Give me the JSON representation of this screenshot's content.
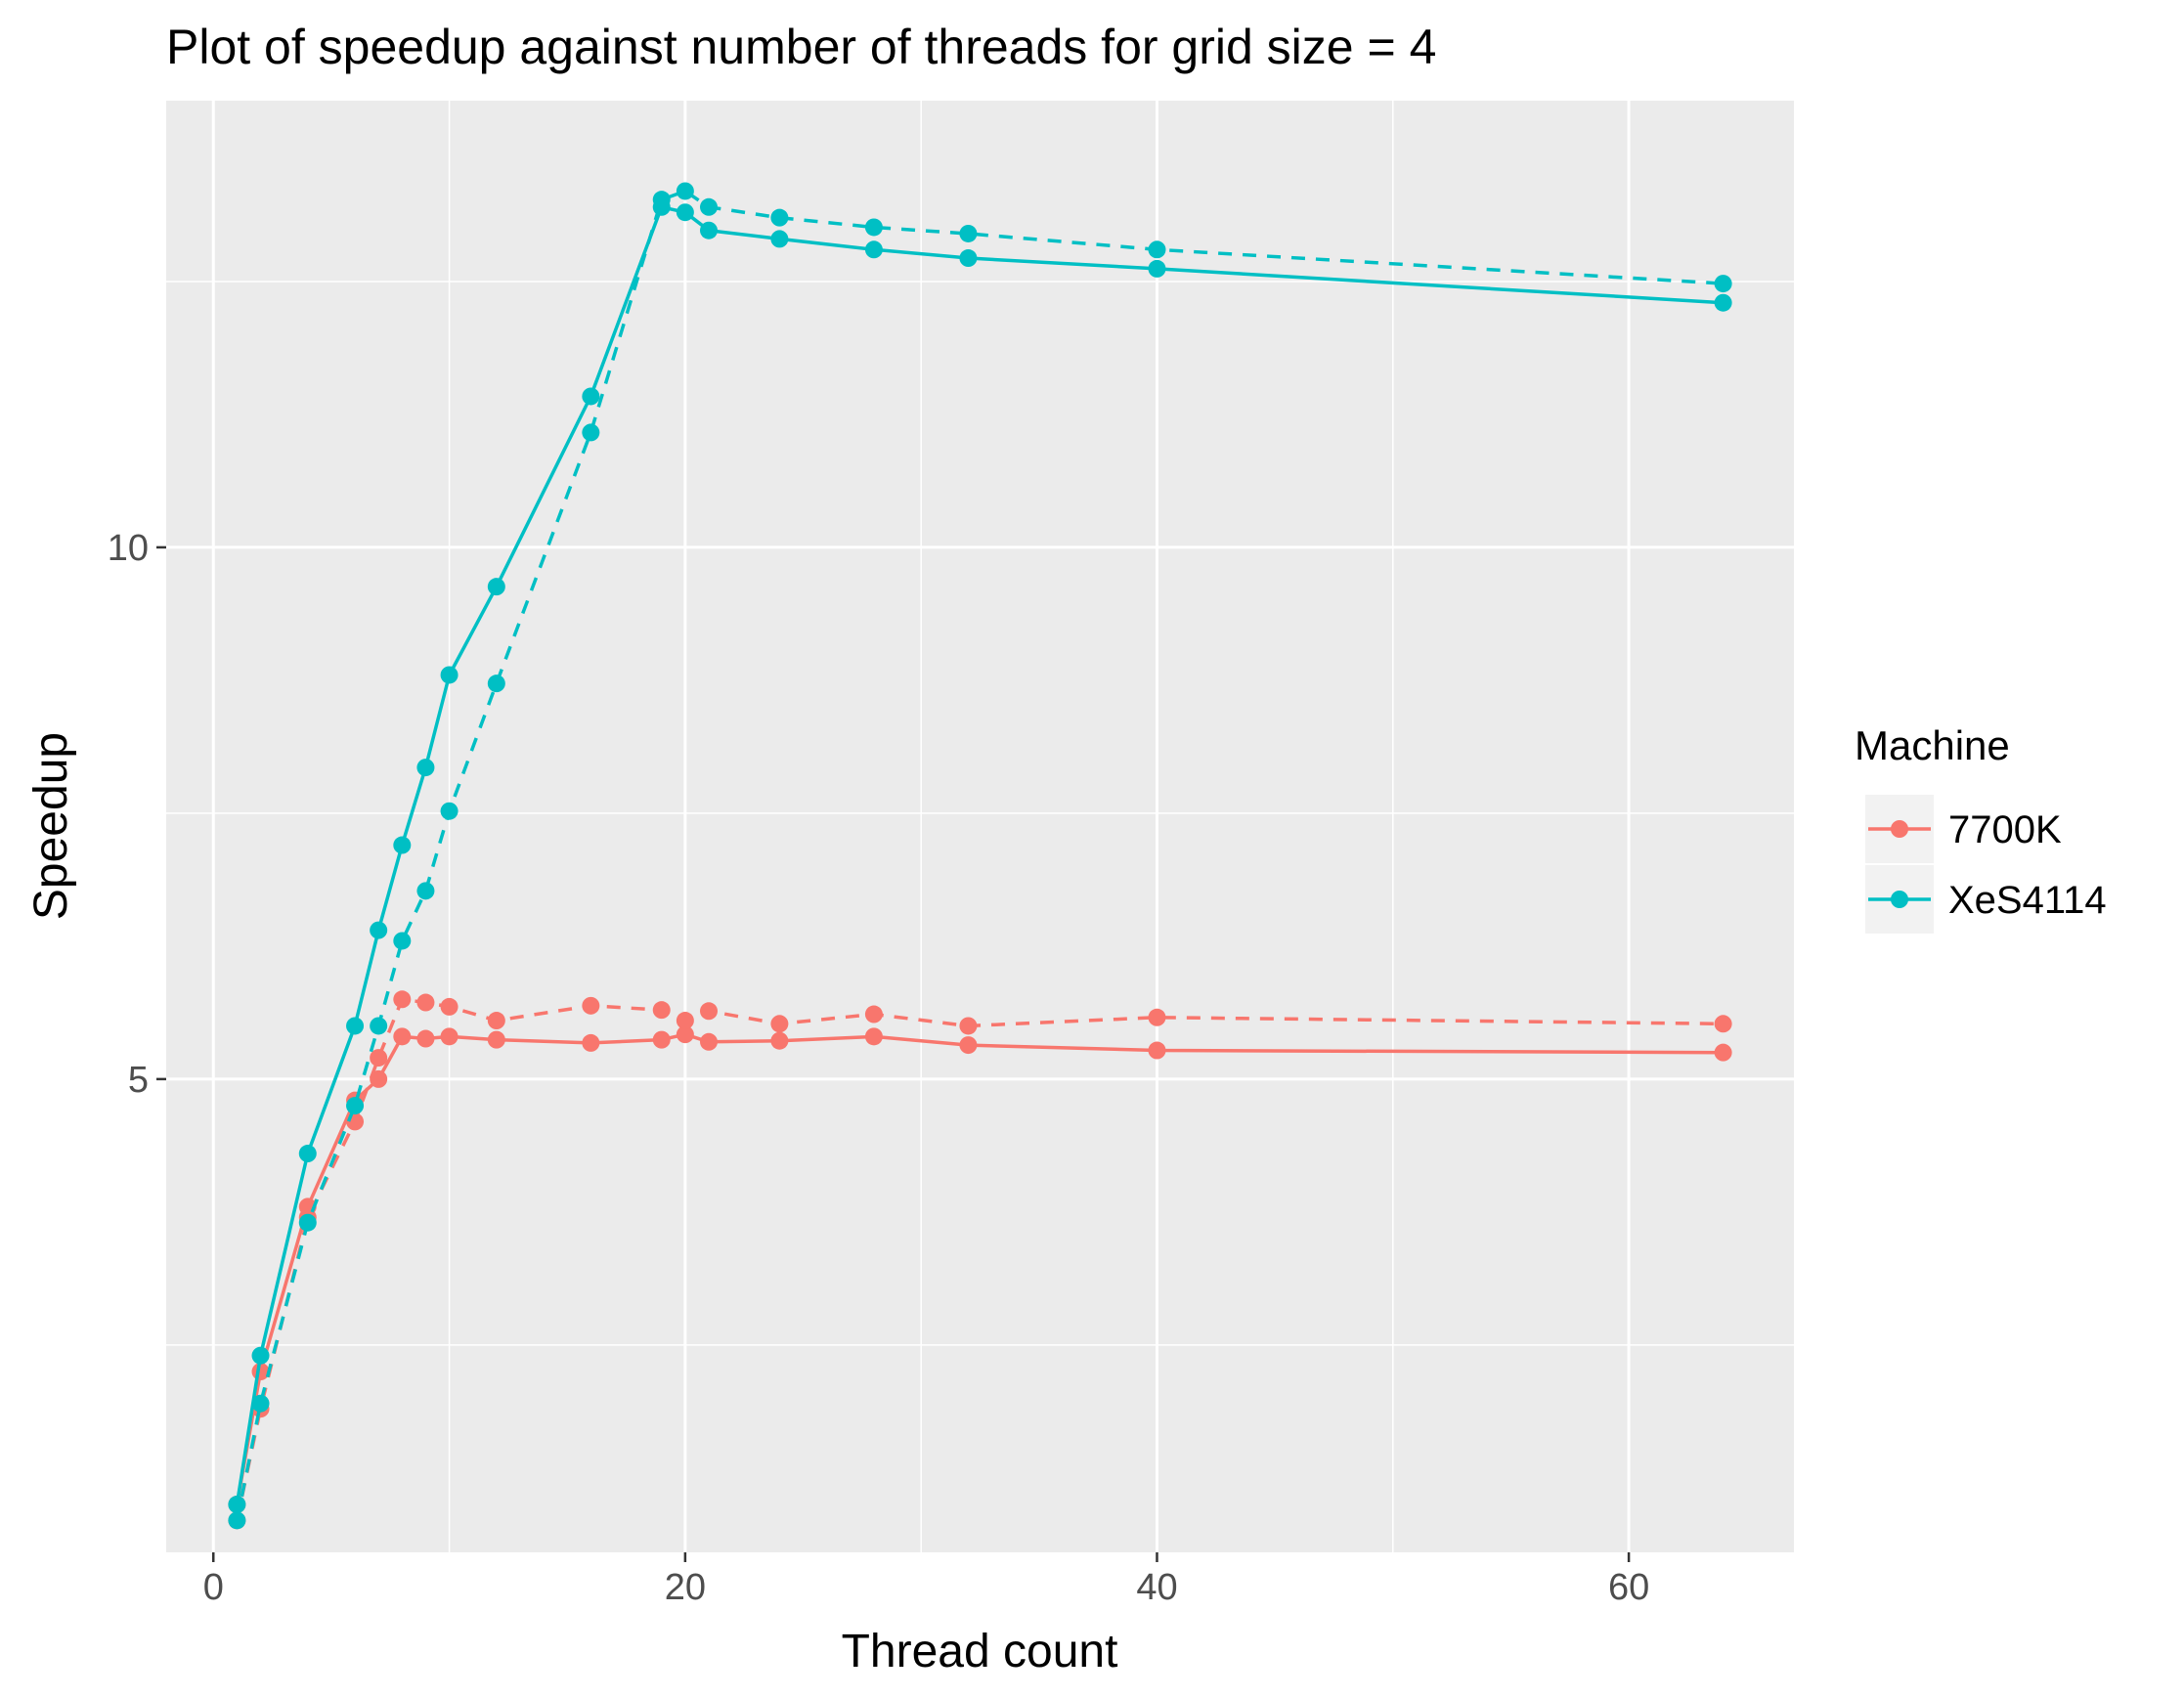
{
  "chart_data": {
    "type": "line",
    "title": "Plot of speedup against number of threads for grid size = 4",
    "xlabel": "Thread count",
    "ylabel": "Speedup",
    "xlim": [
      -2,
      67
    ],
    "ylim": [
      0.55,
      14.2
    ],
    "x_ticks": [
      0,
      20,
      40,
      60
    ],
    "x_tick_labels": [
      "0",
      "20",
      "40",
      "60"
    ],
    "y_ticks": [
      5,
      10
    ],
    "y_tick_labels": [
      "5",
      "10"
    ],
    "x_minor_ticks": [
      10,
      30,
      50
    ],
    "y_minor_ticks": [
      2.5,
      7.5,
      12.5
    ],
    "grid": true,
    "background": "#ebebeb",
    "legend": {
      "title": "Machine",
      "position": "right",
      "entries": [
        {
          "label": "7700K",
          "color": "#f8766d"
        },
        {
          "label": "XeS4114",
          "color": "#00bfc4"
        }
      ]
    },
    "series": [
      {
        "machine": "7700K",
        "color": "#f8766d",
        "linestyle": "solid",
        "x": [
          1,
          2,
          4,
          6,
          7,
          8,
          9,
          10,
          12,
          16,
          19,
          20,
          21,
          24,
          28,
          32,
          40,
          64
        ],
        "y": [
          1.0,
          2.25,
          3.8,
          4.8,
          5.0,
          5.4,
          5.38,
          5.4,
          5.37,
          5.34,
          5.37,
          5.42,
          5.35,
          5.36,
          5.4,
          5.32,
          5.27,
          5.25
        ]
      },
      {
        "machine": "7700K",
        "color": "#f8766d",
        "linestyle": "dashed",
        "x": [
          1,
          2,
          4,
          6,
          7,
          8,
          9,
          10,
          12,
          16,
          19,
          20,
          21,
          24,
          28,
          32,
          40,
          64
        ],
        "y": [
          0.85,
          1.9,
          3.7,
          4.6,
          5.2,
          5.75,
          5.72,
          5.68,
          5.55,
          5.69,
          5.65,
          5.55,
          5.64,
          5.52,
          5.61,
          5.5,
          5.58,
          5.52
        ]
      },
      {
        "machine": "XeS4114",
        "color": "#00bfc4",
        "linestyle": "solid",
        "x": [
          1,
          2,
          4,
          6,
          7,
          8,
          9,
          10,
          12,
          16,
          19,
          20,
          21,
          24,
          28,
          32,
          40,
          64
        ],
        "y": [
          1.0,
          2.4,
          4.3,
          5.5,
          6.4,
          7.2,
          7.93,
          8.8,
          9.63,
          11.42,
          13.2,
          13.15,
          12.98,
          12.9,
          12.8,
          12.72,
          12.62,
          12.3
        ]
      },
      {
        "machine": "XeS4114",
        "color": "#00bfc4",
        "linestyle": "dashed",
        "x": [
          1,
          2,
          4,
          6,
          7,
          8,
          9,
          10,
          12,
          16,
          19,
          20,
          21,
          24,
          28,
          32,
          40,
          64
        ],
        "y": [
          0.85,
          1.95,
          3.65,
          4.75,
          5.5,
          6.3,
          6.77,
          7.52,
          8.72,
          11.08,
          13.27,
          13.35,
          13.2,
          13.1,
          13.01,
          12.95,
          12.8,
          12.48
        ]
      }
    ]
  }
}
